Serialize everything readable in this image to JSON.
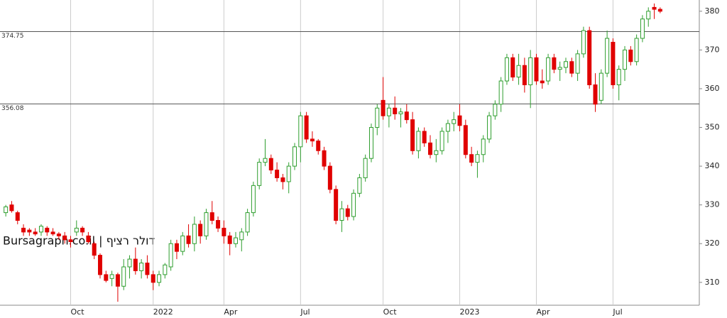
{
  "chart_data": {
    "type": "candlestick",
    "watermark": "Bursagraph.co.il | דולר רציף",
    "categories": [
      null,
      null,
      null,
      null,
      null,
      null,
      null,
      null,
      null,
      null,
      null,
      "Oct",
      null,
      null,
      null,
      null,
      null,
      null,
      null,
      null,
      null,
      null,
      null,
      null,
      null,
      "2022",
      null,
      null,
      null,
      null,
      null,
      null,
      null,
      null,
      null,
      null,
      null,
      "Apr",
      null,
      null,
      null,
      null,
      null,
      null,
      null,
      null,
      null,
      null,
      null,
      null,
      "Jul",
      null,
      null,
      null,
      null,
      null,
      null,
      null,
      null,
      null,
      null,
      null,
      null,
      null,
      "Oct",
      null,
      null,
      null,
      null,
      null,
      null,
      null,
      null,
      null,
      null,
      null,
      null,
      "2023",
      null,
      null,
      null,
      null,
      null,
      null,
      null,
      null,
      null,
      null,
      null,
      null,
      "Apr",
      null,
      null,
      null,
      null,
      null,
      null,
      null,
      null,
      null,
      null,
      null,
      null,
      "Jul",
      null,
      null,
      null,
      null,
      null,
      null,
      null,
      null
    ],
    "candles": [
      [
        328,
        330,
        327,
        329.5
      ],
      [
        330,
        331,
        328,
        328.5
      ],
      [
        328,
        328.5,
        325,
        326
      ],
      [
        324,
        325,
        322,
        323
      ],
      [
        323.5,
        324,
        322,
        323
      ],
      [
        323,
        324,
        322,
        322.5
      ],
      [
        323,
        325,
        322,
        324.5
      ],
      [
        324,
        324.5,
        322,
        323
      ],
      [
        323,
        324,
        322,
        322.5
      ],
      [
        322.5,
        323,
        321,
        322
      ],
      [
        322,
        323,
        320,
        321
      ],
      [
        321,
        322,
        319,
        320.5
      ],
      [
        323,
        326,
        322,
        324
      ],
      [
        324,
        324.5,
        322,
        323
      ],
      [
        322,
        323,
        320,
        320.5
      ],
      [
        320,
        320.5,
        316,
        317
      ],
      [
        317,
        317.5,
        311,
        312
      ],
      [
        312,
        313,
        310,
        310.5
      ],
      [
        311,
        313,
        309,
        312
      ],
      [
        312,
        312.5,
        305,
        309
      ],
      [
        309,
        316,
        308,
        314
      ],
      [
        314,
        317,
        311,
        316
      ],
      [
        316,
        319,
        312,
        313
      ],
      [
        313,
        316,
        311,
        315
      ],
      [
        315,
        317,
        311,
        312
      ],
      [
        312,
        313,
        308,
        310
      ],
      [
        310,
        313,
        309,
        312
      ],
      [
        312,
        315,
        311,
        314.5
      ],
      [
        314,
        321,
        313,
        320
      ],
      [
        320,
        321,
        316,
        318
      ],
      [
        318,
        323,
        317,
        322
      ],
      [
        322,
        325,
        319,
        320
      ],
      [
        320,
        327,
        318,
        325
      ],
      [
        325,
        326,
        320,
        322
      ],
      [
        322,
        329,
        321,
        328
      ],
      [
        328,
        331,
        325,
        326
      ],
      [
        326,
        327,
        323,
        324
      ],
      [
        324,
        326,
        320,
        322
      ],
      [
        322,
        323,
        317,
        320
      ],
      [
        320,
        323,
        319,
        321.5
      ],
      [
        321,
        324,
        318,
        323
      ],
      [
        323,
        329,
        322,
        328
      ],
      [
        328,
        336,
        327,
        335
      ],
      [
        335,
        342,
        334,
        341
      ],
      [
        341,
        347,
        340,
        342
      ],
      [
        342,
        343,
        338,
        339
      ],
      [
        339,
        341,
        336,
        337
      ],
      [
        337,
        338,
        334,
        336
      ],
      [
        336,
        341,
        333,
        340
      ],
      [
        340,
        346,
        339,
        345
      ],
      [
        345,
        354,
        341,
        353
      ],
      [
        353,
        354,
        346,
        347
      ],
      [
        347,
        349,
        345,
        346.5
      ],
      [
        346.5,
        347,
        343,
        344
      ],
      [
        344,
        345,
        339,
        340
      ],
      [
        340,
        341,
        333,
        334
      ],
      [
        334,
        335,
        325,
        326
      ],
      [
        326,
        331,
        323,
        329
      ],
      [
        329,
        330,
        326,
        327
      ],
      [
        327,
        334,
        326,
        333
      ],
      [
        333,
        338,
        332,
        337
      ],
      [
        337,
        343,
        336,
        342
      ],
      [
        342,
        351,
        341,
        350
      ],
      [
        350,
        356,
        348,
        355
      ],
      [
        357,
        363,
        352,
        353
      ],
      [
        353,
        356,
        350,
        355
      ],
      [
        355,
        358,
        352,
        353.5
      ],
      [
        353.5,
        355,
        350,
        354
      ],
      [
        354,
        356,
        351,
        352
      ],
      [
        352,
        354,
        343,
        344
      ],
      [
        344,
        350,
        342,
        349
      ],
      [
        349,
        350,
        345,
        346
      ],
      [
        346,
        348,
        342,
        343
      ],
      [
        343,
        347,
        341,
        344
      ],
      [
        344,
        350,
        343,
        349
      ],
      [
        349,
        352,
        346,
        351
      ],
      [
        351,
        354,
        349,
        352
      ],
      [
        353,
        356,
        349,
        350.5
      ],
      [
        350.5,
        352,
        342,
        343
      ],
      [
        343,
        345,
        340,
        341
      ],
      [
        341,
        344,
        337,
        343
      ],
      [
        343,
        348,
        341,
        347
      ],
      [
        347,
        354,
        346,
        353
      ],
      [
        353,
        357,
        352,
        356
      ],
      [
        356,
        363,
        354,
        362
      ],
      [
        362,
        369,
        361,
        368
      ],
      [
        368,
        369,
        362,
        363
      ],
      [
        363,
        369,
        361,
        366
      ],
      [
        366,
        368,
        359,
        361
      ],
      [
        361,
        370,
        355,
        368
      ],
      [
        368,
        369,
        361,
        362
      ],
      [
        362,
        365,
        360,
        361.5
      ],
      [
        362,
        369,
        361,
        368
      ],
      [
        368,
        369,
        364,
        365
      ],
      [
        365,
        367,
        362,
        365.5
      ],
      [
        365.5,
        368,
        364,
        367
      ],
      [
        367,
        368,
        363,
        364
      ],
      [
        364,
        370,
        362,
        369
      ],
      [
        369,
        376,
        368,
        375
      ],
      [
        375,
        376,
        360,
        361
      ],
      [
        361,
        364,
        354,
        356
      ],
      [
        357,
        365,
        356,
        364
      ],
      [
        364,
        375,
        363,
        373
      ],
      [
        372,
        373,
        360,
        361
      ],
      [
        361,
        366,
        357,
        365
      ],
      [
        365,
        371,
        362,
        370
      ],
      [
        370,
        371,
        366,
        367
      ],
      [
        367,
        374,
        366,
        373
      ],
      [
        373,
        379,
        372,
        378
      ],
      [
        378,
        381,
        376,
        380
      ],
      [
        381,
        382,
        378,
        380.5
      ],
      [
        380.5,
        381,
        379.5,
        380
      ]
    ],
    "up_color": "#2e9e2e",
    "down_color": "#e00000",
    "levels": [
      374.75,
      356.08
    ],
    "ylim": [
      304.1,
      382.9
    ],
    "yticks": [
      310,
      320,
      330,
      340,
      350,
      360,
      370,
      380
    ],
    "grid": true
  }
}
